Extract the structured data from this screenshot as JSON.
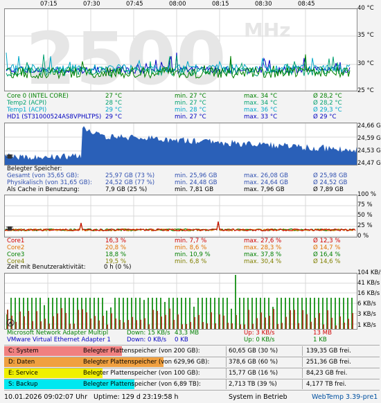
{
  "colors": {
    "green": "#008000",
    "teal": "#009090",
    "cyan": "#00a8c8",
    "blue": "#0000c0",
    "red": "#d00000",
    "orange": "#e07000",
    "darkgreen": "#006000",
    "olive": "#808000",
    "cpuorange": "#ff8000",
    "cpugreen": "#40c040",
    "grid": "#d8d8d8",
    "bigtext": "#e6e6e6"
  },
  "time_axis": [
    "07:15",
    "07:30",
    "07:45",
    "08:00",
    "08:15",
    "08:30",
    "08:45"
  ],
  "watermark": {
    "value": "2500",
    "unit": "MHz"
  },
  "temp": {
    "ticks": [
      "40 °C",
      "35 °C",
      "30 °C",
      "25 °C"
    ],
    "rows": [
      {
        "name": "Core 0 (INTEL CORE)",
        "cur": "27 °C",
        "min": "min. 27 °C",
        "max": "max. 34 °C",
        "avg": "Ø 28,2 °C",
        "color": "#008000"
      },
      {
        "name": "Temp2 (ACPI)",
        "cur": "28 °C",
        "min": "min. 27 °C",
        "max": "max. 34 °C",
        "avg": "Ø 28,2 °C",
        "color": "#00a070"
      },
      {
        "name": "Temp1 (ACPI)",
        "cur": "29 °C",
        "min": "min. 28 °C",
        "max": "max. 36 °C",
        "avg": "Ø 29,3 °C",
        "color": "#00a8c8"
      },
      {
        "name": "HD1 (ST31000524AS8VPHLTPS)",
        "cur": "29 °C",
        "min": "min. 27 °C",
        "max": "max. 33 °C",
        "avg": "Ø 29 °C",
        "color": "#0000c0"
      }
    ]
  },
  "memory": {
    "ticks": [
      "24,66 GB",
      "24,59 GB",
      "24,53 GB",
      "24,47 GB"
    ],
    "title": "Belegter Speicher:",
    "rows": [
      {
        "name": "Gesamt (von 35,65 GB):",
        "cur": "25,97 GB (73 %)",
        "min": "min. 25,96 GB",
        "max": "max. 26,08 GB",
        "avg": "Ø 25,98 GB",
        "color": "#3050b0"
      },
      {
        "name": "Physikalisch (von 31,65 GB):",
        "cur": "24,52 GB (77 %)",
        "min": "min. 24,48 GB",
        "max": "max. 24,64 GB",
        "avg": "Ø 24,52 GB",
        "color": "#3050b0"
      },
      {
        "name": "Als Cache in Benutzung:",
        "cur": "7,9 GB (25 %)",
        "min": "min. 7,81 GB",
        "max": "max. 7,96 GB",
        "avg": "Ø 7,89 GB",
        "color": "#000000"
      }
    ]
  },
  "cpu": {
    "ticks": [
      "100 %",
      "75 %",
      "50 %",
      "25 %",
      "0 %"
    ],
    "rows": [
      {
        "name": "Core1",
        "cur": "16,3 %",
        "min": "min. 7,7 %",
        "max": "max. 27,6 %",
        "avg": "Ø 12,3 %",
        "color": "#d00000"
      },
      {
        "name": "Core2",
        "cur": "20,8 %",
        "min": "min. 8,6 %",
        "max": "max. 28,3 %",
        "avg": "Ø 14,7 %",
        "color": "#e07000"
      },
      {
        "name": "Core3",
        "cur": "18,8 %",
        "min": "min. 10,9 %",
        "max": "max. 37,8 %",
        "avg": "Ø 16,4 %",
        "color": "#008000"
      },
      {
        "name": "Core4",
        "cur": "19,5 %",
        "min": "min. 6,8 %",
        "max": "max. 30,4 %",
        "avg": "Ø 14,6 %",
        "color": "#808000"
      }
    ],
    "activity": "Zeit mit Benutzeraktivität:",
    "activity_val": "0 h (0 %)"
  },
  "network": {
    "ticks": [
      "104 KB/s",
      "41 KB/s",
      "16 KB/s",
      "6 KB/s",
      "3 KB/s",
      "1 KB/s"
    ],
    "rows": [
      {
        "name": "Microsoft Network Adapter Multipl",
        "down": "Down: 15 KB/s",
        "total_down": "43,3 MB",
        "up": "Up: 3 KB/s",
        "total_up": "13 MB",
        "color": "#008000",
        "upcolor": "#d00000"
      },
      {
        "name": "VMware Virtual Ethernet Adapter 1",
        "down": "Down: 0 KB/s",
        "total_down": "0 KB",
        "up": "Up: 0 KB/s",
        "total_up": "1 KB",
        "color": "#0000c0",
        "upcolor": "#008000"
      }
    ]
  },
  "drives": [
    {
      "label": "C: System",
      "color": "#f08080",
      "fill": 0.3,
      "desc": "Belegter Plattenspeicher (von 200 GB):",
      "used": "60,65 GB (30 %)",
      "free": "139,35 GB frei."
    },
    {
      "label": "D: Daten",
      "color": "#f0a040",
      "fill": 0.6,
      "desc": "Belegter Plattenspeicher (von 629,96 GB):",
      "used": "378,6 GB (60 %)",
      "free": "251,36 GB frei."
    },
    {
      "label": "E: Service",
      "color": "#f0f000",
      "fill": 0.16,
      "desc": "Belegter Plattenspeicher (von 100 GB):",
      "used": "15,77 GB (16 %)",
      "free": "84,23 GB frei."
    },
    {
      "label": "S: Backup",
      "color": "#00e8f0",
      "fill": 0.39,
      "desc": "Belegter Plattenspeicher (von 6,89 TB):",
      "used": "2,713 TB (39 %)",
      "free": "4,177 TB frei."
    }
  ],
  "status": {
    "datetime": "10.01.2026 09:02:07 Uhr",
    "uptime": "Uptime: 129 d 23:19:58 h",
    "state": "System in Betrieb",
    "app": "WebTemp 3.39-pre1"
  }
}
